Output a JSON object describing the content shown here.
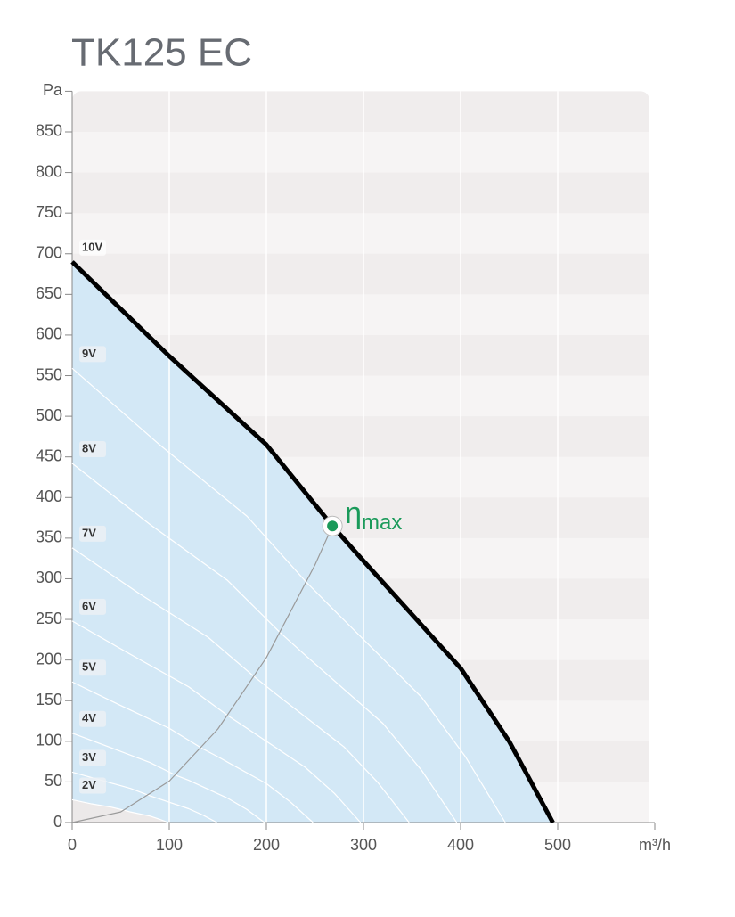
{
  "chart_data": {
    "type": "line",
    "title": "TK125 EC",
    "xlim": [
      0,
      600
    ],
    "ylim": [
      0,
      900
    ],
    "xticks": [
      0,
      100,
      200,
      300,
      400,
      500,
      {
        "value": 600,
        "label": "m³/h"
      }
    ],
    "yticks": [
      0,
      50,
      100,
      150,
      200,
      250,
      300,
      350,
      400,
      450,
      500,
      550,
      600,
      650,
      700,
      750,
      800,
      850,
      {
        "value": 900,
        "label": "Pa"
      }
    ],
    "grid": true,
    "area_color": "#d3e8f6",
    "series": [
      {
        "name": "10V",
        "color": "#000000",
        "x": [
          0,
          100,
          200,
          268,
          300,
          400,
          450,
          495
        ],
        "values": [
          690,
          574,
          465,
          365,
          322,
          190,
          100,
          0
        ]
      },
      {
        "name": "9V",
        "color": "#ffffff",
        "x": [
          0,
          90,
          180,
          241,
          270,
          360,
          405,
          446
        ],
        "values": [
          559,
          465,
          377,
          296,
          261,
          154,
          81,
          0
        ]
      },
      {
        "name": "8V",
        "color": "#ffffff",
        "x": [
          0,
          80,
          160,
          214,
          240,
          320,
          360,
          396
        ],
        "values": [
          442,
          367,
          298,
          234,
          206,
          122,
          64,
          0
        ]
      },
      {
        "name": "7V",
        "color": "#ffffff",
        "x": [
          0,
          70,
          140,
          188,
          210,
          280,
          315,
          347
        ],
        "values": [
          338,
          281,
          228,
          179,
          158,
          93,
          49,
          0
        ]
      },
      {
        "name": "6V",
        "color": "#ffffff",
        "x": [
          0,
          60,
          120,
          161,
          180,
          240,
          270,
          297
        ],
        "values": [
          248,
          207,
          167,
          131,
          116,
          68,
          36,
          0
        ]
      },
      {
        "name": "5V",
        "color": "#ffffff",
        "x": [
          0,
          50,
          100,
          134,
          150,
          200,
          225,
          248
        ],
        "values": [
          173,
          144,
          116,
          91,
          81,
          48,
          25,
          0
        ]
      },
      {
        "name": "4V",
        "color": "#ffffff",
        "x": [
          0,
          40,
          80,
          107,
          120,
          160,
          180,
          198
        ],
        "values": [
          110,
          92,
          74,
          58,
          52,
          30,
          16,
          0
        ]
      },
      {
        "name": "3V",
        "color": "#ffffff",
        "x": [
          0,
          30,
          60,
          80,
          90,
          120,
          135,
          149
        ],
        "values": [
          62,
          52,
          42,
          33,
          29,
          17,
          9,
          0
        ]
      },
      {
        "name": "2V",
        "color": "#ffffff",
        "x": [
          0,
          20,
          40,
          54,
          60,
          80,
          90,
          99
        ],
        "values": [
          28,
          23,
          19,
          15,
          13,
          8,
          4,
          0
        ]
      }
    ],
    "efficiency_curve": {
      "color": "#9a9a9a",
      "x": [
        0,
        50,
        100,
        150,
        200,
        250,
        268
      ],
      "values": [
        0,
        13,
        51,
        115,
        203,
        317,
        365
      ]
    },
    "annotation": {
      "text": "η",
      "subscript": "max",
      "color": "#1a9a5a",
      "x": 268,
      "y": 365
    }
  }
}
